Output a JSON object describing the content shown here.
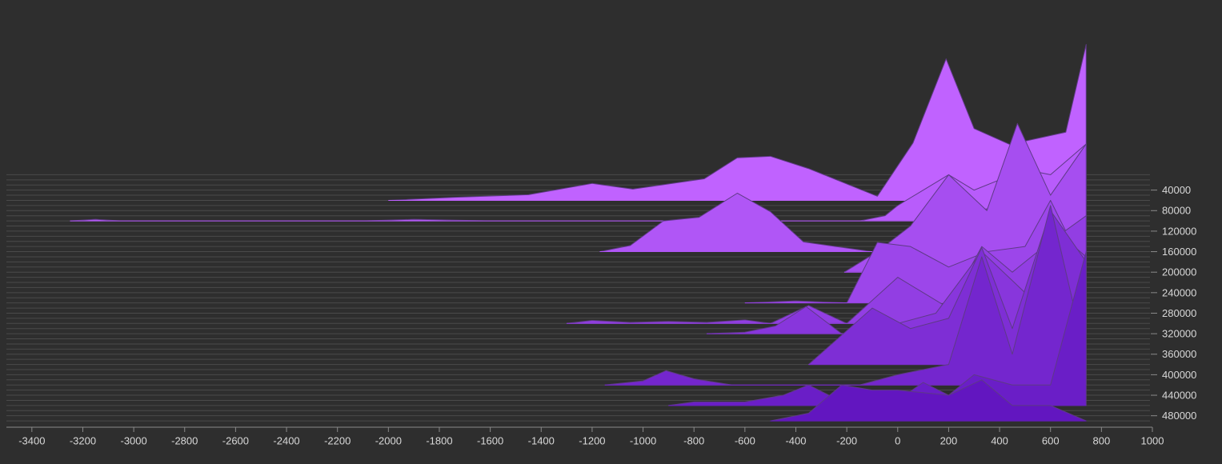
{
  "chart_data": {
    "type": "ridgeline",
    "xlim": [
      -3500,
      1000
    ],
    "xticks": [
      -3400,
      -3200,
      -3000,
      -2800,
      -2600,
      -2400,
      -2200,
      -2000,
      -1800,
      -1600,
      -1400,
      -1200,
      -1000,
      -800,
      -600,
      -400,
      -200,
      0,
      200,
      400,
      600,
      800,
      1000
    ],
    "ylim": [
      0,
      500000
    ],
    "yticks": [
      40000,
      80000,
      120000,
      160000,
      200000,
      240000,
      280000,
      320000,
      360000,
      400000,
      440000,
      480000
    ],
    "yminorticks": [
      10000,
      20000,
      30000,
      40000,
      50000,
      60000,
      70000,
      80000,
      90000,
      100000,
      110000,
      120000,
      130000,
      140000,
      150000,
      160000,
      170000,
      180000,
      190000,
      200000,
      210000,
      220000,
      230000,
      240000,
      250000,
      260000,
      270000,
      280000,
      290000,
      300000,
      310000,
      320000,
      330000,
      340000,
      350000,
      360000,
      370000,
      380000,
      390000,
      400000,
      410000,
      420000,
      430000,
      440000,
      450000,
      460000,
      470000,
      480000,
      490000
    ],
    "grid": true,
    "series": [
      {
        "baseline": 60000,
        "color": "#c062ff",
        "x": [
          -2000,
          -1740,
          -1450,
          -1200,
          -1040,
          -760,
          -630,
          -500,
          -350,
          -80,
          60,
          190,
          300,
          440,
          660,
          740
        ],
        "values": [
          0,
          6000,
          11000,
          33000,
          22000,
          42000,
          83000,
          86000,
          62000,
          8000,
          112000,
          276000,
          140000,
          109000,
          133000,
          304000
        ]
      },
      {
        "baseline": 100000,
        "color": "#b85cfb",
        "x": [
          -3250,
          -3150,
          -3050,
          -2100,
          -1900,
          -1600,
          -150,
          -50,
          0,
          100,
          200,
          300,
          400,
          500,
          600,
          740
        ],
        "values": [
          0,
          3000,
          0,
          0,
          3000,
          0,
          0,
          10000,
          30000,
          60000,
          90000,
          60000,
          80000,
          100000,
          90000,
          150000
        ]
      },
      {
        "baseline": 160000,
        "color": "#b056f6",
        "x": [
          -1170,
          -1050,
          -920,
          -780,
          -630,
          -500,
          -370,
          -100,
          0,
          150,
          300,
          450,
          600,
          740
        ],
        "values": [
          0,
          12000,
          60000,
          67000,
          114000,
          78000,
          19000,
          0,
          20000,
          50000,
          80000,
          90000,
          110000,
          180000
        ]
      },
      {
        "baseline": 200000,
        "color": "#a64ef0",
        "x": [
          -210,
          -80,
          50,
          200,
          350,
          470,
          600,
          740
        ],
        "values": [
          0,
          40000,
          90000,
          190000,
          120000,
          290000,
          150000,
          250000
        ]
      },
      {
        "baseline": 260000,
        "color": "#9c46ea",
        "x": [
          -600,
          -400,
          -200,
          -80,
          50,
          200,
          350,
          500,
          600,
          740
        ],
        "values": [
          0,
          4000,
          0,
          118000,
          110000,
          70000,
          100000,
          110000,
          200000,
          60000
        ]
      },
      {
        "baseline": 300000,
        "color": "#923ee3",
        "x": [
          -1300,
          -1200,
          -1050,
          -900,
          -750,
          -600,
          -500,
          -350,
          -200,
          0,
          100,
          200,
          330,
          450,
          600,
          740
        ],
        "values": [
          0,
          6000,
          2000,
          4000,
          2000,
          7000,
          0,
          35000,
          0,
          90000,
          60000,
          30000,
          150000,
          100000,
          160000,
          210000
        ]
      },
      {
        "baseline": 320000,
        "color": "#8836dc",
        "x": [
          -750,
          -600,
          -480,
          -360,
          -220,
          0,
          150,
          330,
          500,
          600,
          740
        ],
        "values": [
          0,
          3000,
          15000,
          53000,
          0,
          20000,
          40000,
          160000,
          80000,
          210000,
          150000
        ]
      },
      {
        "baseline": 380000,
        "color": "#7e2ed5",
        "x": [
          -350,
          -100,
          50,
          200,
          330,
          450,
          600,
          740
        ],
        "values": [
          0,
          110000,
          70000,
          90000,
          228000,
          70000,
          300000,
          200000
        ]
      },
      {
        "baseline": 420000,
        "color": "#7426ce",
        "x": [
          -1150,
          -1000,
          -910,
          -800,
          -650,
          -150,
          0,
          200,
          330,
          450,
          600,
          740
        ],
        "values": [
          0,
          8000,
          28000,
          12000,
          0,
          0,
          20000,
          40000,
          250000,
          60000,
          350000,
          50000
        ]
      },
      {
        "baseline": 460000,
        "color": "#6a1ec7",
        "x": [
          -900,
          -800,
          -600,
          -450,
          -350,
          -250,
          0,
          100,
          200,
          300,
          450,
          600,
          740
        ],
        "values": [
          0,
          7000,
          7000,
          20000,
          40000,
          15000,
          10000,
          45000,
          20000,
          60000,
          40000,
          40000,
          300000
        ]
      },
      {
        "baseline": 490000,
        "color": "#6216c0",
        "x": [
          -500,
          -350,
          -220,
          -100,
          0,
          200,
          330,
          450,
          600,
          740
        ],
        "values": [
          0,
          15000,
          70000,
          60000,
          60000,
          50000,
          80000,
          30000,
          30000,
          0
        ]
      }
    ]
  }
}
